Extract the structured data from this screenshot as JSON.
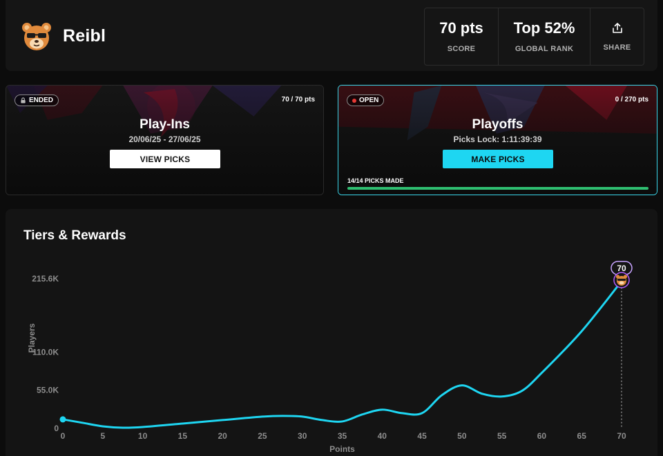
{
  "user": {
    "name": "Reibl",
    "avatar_icon": "bear-sunglasses-icon"
  },
  "stats": {
    "score_value": "70 pts",
    "score_label": "SCORE",
    "rank_value": "Top 52%",
    "rank_label": "GLOBAL RANK",
    "share_label": "SHARE",
    "share_icon": "share-icon"
  },
  "cards": [
    {
      "status": "ENDED",
      "status_icon": "lock-icon",
      "points": "70 / 70 pts",
      "title": "Play-Ins",
      "subtitle": "20/06/25 - 27/06/25",
      "button": "VIEW PICKS"
    },
    {
      "status": "OPEN",
      "status_color": "#e53935",
      "points": "0 / 270 pts",
      "title": "Playoffs",
      "subtitle": "Picks Lock: 1:11:39:39",
      "button": "MAKE PICKS",
      "picks_made": "14/14 PICKS MADE",
      "progress_fraction": 1.0,
      "accent": "#1ed6f2"
    }
  ],
  "tiers": {
    "title": "Tiers & Rewards"
  },
  "chart_data": {
    "type": "line",
    "xlabel": "Points",
    "ylabel": "Players",
    "xlim": [
      0,
      70
    ],
    "ylim": [
      0,
      215600
    ],
    "x_ticks": [
      0,
      5,
      10,
      15,
      20,
      25,
      30,
      35,
      40,
      45,
      50,
      55,
      60,
      65,
      70
    ],
    "y_ticks": [
      0,
      55000,
      110000,
      215600
    ],
    "y_tick_labels": [
      "0",
      "55.0K",
      "110.0K",
      "215.6K"
    ],
    "series": [
      {
        "color": "#1ed6f2",
        "points": [
          [
            0,
            13000
          ],
          [
            2.5,
            8000
          ],
          [
            5,
            3000
          ],
          [
            7.5,
            1000
          ],
          [
            10,
            2000
          ],
          [
            15,
            7000
          ],
          [
            20,
            12000
          ],
          [
            25,
            17000
          ],
          [
            27.5,
            18000
          ],
          [
            30,
            17000
          ],
          [
            32.5,
            12000
          ],
          [
            35,
            10000
          ],
          [
            37.5,
            20000
          ],
          [
            40,
            27000
          ],
          [
            42.5,
            22000
          ],
          [
            45,
            22000
          ],
          [
            47.5,
            48000
          ],
          [
            50,
            62000
          ],
          [
            52.5,
            50000
          ],
          [
            55,
            46000
          ],
          [
            57.5,
            54000
          ],
          [
            60,
            80000
          ],
          [
            65,
            140000
          ],
          [
            70,
            212000
          ]
        ]
      }
    ],
    "marker": {
      "x": 70,
      "label": "70",
      "icon": "bear-sunglasses-icon"
    }
  }
}
